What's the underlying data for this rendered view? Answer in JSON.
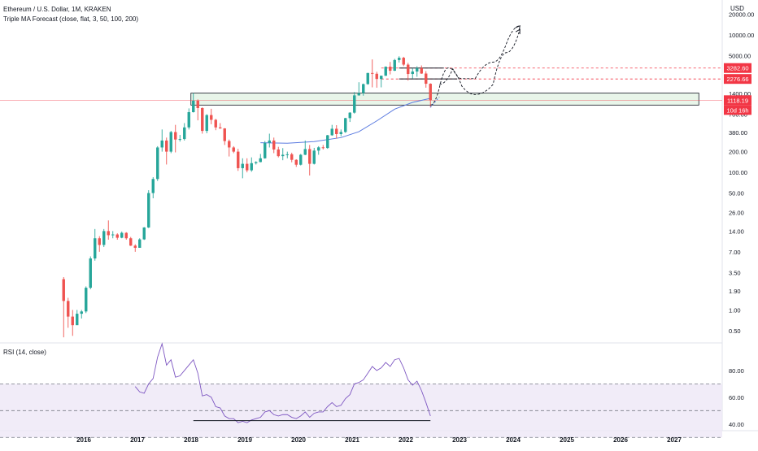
{
  "header": {
    "symbol_title": "Ethereum / U.S. Dollar, 1M, KRAKEN",
    "indicator_title": "Triple MA Forecast (close, flat, 3, 50, 100, 200)",
    "currency": "USD"
  },
  "rsi_panel": {
    "title": "RSI (14, close)",
    "ticks": [
      "80.00",
      "60.00",
      "40.00"
    ],
    "tick_values": [
      80,
      60,
      40
    ],
    "bands": [
      70,
      50,
      30
    ],
    "line_color": "#7e57c2",
    "support_line_value": 42.5
  },
  "colors": {
    "up": "#26a69a",
    "down": "#ef5350",
    "ma": "#5b7be0",
    "zone_fill": "#e8f5e9",
    "price_line": "#f23645",
    "rsi_bg": "#ede7f6"
  },
  "chart_data": {
    "type": "candlestick",
    "title": "Ethereum / U.S. Dollar, 1M, KRAKEN",
    "y_scale": "log",
    "ylim": [
      0.35,
      32000
    ],
    "y_ticks": [
      "20000.00",
      "10000.00",
      "5000.00",
      "1400.00",
      "700.00",
      "380.00",
      "200.00",
      "100.00",
      "50.00",
      "26.00",
      "14.00",
      "7.00",
      "3.50",
      "1.90",
      "1.00",
      "0.50"
    ],
    "y_tick_values": [
      20000,
      10000,
      5000,
      1400,
      700,
      380,
      200,
      100,
      50,
      26,
      14,
      7,
      3.5,
      1.9,
      1.0,
      0.5
    ],
    "x_ticks": [
      "2016",
      "2017",
      "2018",
      "2019",
      "2020",
      "2021",
      "2022",
      "2023",
      "2024",
      "2025",
      "2026",
      "2027"
    ],
    "x_tick_years": [
      2016,
      2017,
      2018,
      2019,
      2020,
      2021,
      2022,
      2023,
      2024,
      2025,
      2026,
      2027
    ],
    "price_labels": [
      {
        "text": "3282.60",
        "value": 3282.6
      },
      {
        "text": "2276.66",
        "value": 2276.66
      },
      {
        "text": "1118.19",
        "value": 1118.19
      },
      {
        "text": "10d 16h",
        "value": 1118.19
      }
    ],
    "current_price": 1118.19,
    "support_zone": {
      "low": 950,
      "high": 1420,
      "from": "2018-01",
      "to": "2027-06"
    },
    "candles": [
      {
        "t": "2015-08",
        "o": 2.8,
        "h": 3.0,
        "l": 0.4,
        "c": 1.35
      },
      {
        "t": "2015-09",
        "o": 1.35,
        "h": 1.5,
        "l": 0.55,
        "c": 0.8
      },
      {
        "t": "2015-10",
        "o": 0.8,
        "h": 1.0,
        "l": 0.42,
        "c": 0.6
      },
      {
        "t": "2015-11",
        "o": 0.6,
        "h": 1.0,
        "l": 0.7,
        "c": 0.88
      },
      {
        "t": "2015-12",
        "o": 0.88,
        "h": 1.0,
        "l": 0.75,
        "c": 0.95
      },
      {
        "t": "2016-01",
        "o": 0.95,
        "h": 2.2,
        "l": 0.9,
        "c": 2.1
      },
      {
        "t": "2016-02",
        "o": 2.1,
        "h": 6.0,
        "l": 2.0,
        "c": 5.6
      },
      {
        "t": "2016-03",
        "o": 5.6,
        "h": 15.0,
        "l": 5.2,
        "c": 11.0
      },
      {
        "t": "2016-04",
        "o": 11.0,
        "h": 11.8,
        "l": 7.0,
        "c": 8.8
      },
      {
        "t": "2016-05",
        "o": 8.8,
        "h": 15.0,
        "l": 8.2,
        "c": 14.0
      },
      {
        "t": "2016-06",
        "o": 14.0,
        "h": 20.0,
        "l": 10.5,
        "c": 12.2
      },
      {
        "t": "2016-07",
        "o": 12.2,
        "h": 14.0,
        "l": 11.0,
        "c": 12.5
      },
      {
        "t": "2016-08",
        "o": 12.5,
        "h": 13.0,
        "l": 10.5,
        "c": 11.2
      },
      {
        "t": "2016-09",
        "o": 11.2,
        "h": 13.8,
        "l": 11.0,
        "c": 13.2
      },
      {
        "t": "2016-10",
        "o": 13.2,
        "h": 13.5,
        "l": 10.5,
        "c": 11.0
      },
      {
        "t": "2016-11",
        "o": 11.0,
        "h": 11.5,
        "l": 8.5,
        "c": 8.6
      },
      {
        "t": "2016-12",
        "o": 8.6,
        "h": 9.0,
        "l": 7.0,
        "c": 8.0
      },
      {
        "t": "2017-01",
        "o": 8.0,
        "h": 11.0,
        "l": 8.0,
        "c": 10.6
      },
      {
        "t": "2017-02",
        "o": 10.6,
        "h": 16.0,
        "l": 10.4,
        "c": 15.8
      },
      {
        "t": "2017-03",
        "o": 15.8,
        "h": 55.0,
        "l": 15.5,
        "c": 50.0
      },
      {
        "t": "2017-04",
        "o": 50.0,
        "h": 85.0,
        "l": 42.0,
        "c": 80.0
      },
      {
        "t": "2017-05",
        "o": 80.0,
        "h": 240.0,
        "l": 75.0,
        "c": 230.0
      },
      {
        "t": "2017-06",
        "o": 230.0,
        "h": 420.0,
        "l": 200.0,
        "c": 290.0
      },
      {
        "t": "2017-07",
        "o": 290.0,
        "h": 320.0,
        "l": 130.0,
        "c": 200.0
      },
      {
        "t": "2017-08",
        "o": 200.0,
        "h": 400.0,
        "l": 190.0,
        "c": 385.0
      },
      {
        "t": "2017-09",
        "o": 385.0,
        "h": 490.0,
        "l": 195.0,
        "c": 300.0
      },
      {
        "t": "2017-10",
        "o": 300.0,
        "h": 350.0,
        "l": 280.0,
        "c": 305.0
      },
      {
        "t": "2017-11",
        "o": 305.0,
        "h": 520.0,
        "l": 290.0,
        "c": 450.0
      },
      {
        "t": "2017-12",
        "o": 450.0,
        "h": 850.0,
        "l": 420.0,
        "c": 750.0
      },
      {
        "t": "2018-01",
        "o": 750.0,
        "h": 1420.0,
        "l": 740.0,
        "c": 1100.0
      },
      {
        "t": "2018-02",
        "o": 1100.0,
        "h": 1150.0,
        "l": 570.0,
        "c": 860.0
      },
      {
        "t": "2018-03",
        "o": 860.0,
        "h": 880.0,
        "l": 365.0,
        "c": 400.0
      },
      {
        "t": "2018-04",
        "o": 400.0,
        "h": 700.0,
        "l": 370.0,
        "c": 680.0
      },
      {
        "t": "2018-05",
        "o": 680.0,
        "h": 840.0,
        "l": 500.0,
        "c": 580.0
      },
      {
        "t": "2018-06",
        "o": 580.0,
        "h": 600.0,
        "l": 410.0,
        "c": 450.0
      },
      {
        "t": "2018-07",
        "o": 450.0,
        "h": 520.0,
        "l": 430.0,
        "c": 435.0
      },
      {
        "t": "2018-08",
        "o": 435.0,
        "h": 440.0,
        "l": 250.0,
        "c": 285.0
      },
      {
        "t": "2018-09",
        "o": 285.0,
        "h": 300.0,
        "l": 170.0,
        "c": 230.0
      },
      {
        "t": "2018-10",
        "o": 230.0,
        "h": 240.0,
        "l": 190.0,
        "c": 200.0
      },
      {
        "t": "2018-11",
        "o": 200.0,
        "h": 220.0,
        "l": 105.0,
        "c": 115.0
      },
      {
        "t": "2018-12",
        "o": 115.0,
        "h": 160.0,
        "l": 82.0,
        "c": 133.0
      },
      {
        "t": "2019-01",
        "o": 133.0,
        "h": 160.0,
        "l": 100.0,
        "c": 107.0
      },
      {
        "t": "2019-02",
        "o": 107.0,
        "h": 165.0,
        "l": 102.0,
        "c": 136.0
      },
      {
        "t": "2019-03",
        "o": 136.0,
        "h": 145.0,
        "l": 130.0,
        "c": 141.0
      },
      {
        "t": "2019-04",
        "o": 141.0,
        "h": 185.0,
        "l": 140.0,
        "c": 160.0
      },
      {
        "t": "2019-05",
        "o": 160.0,
        "h": 285.0,
        "l": 158.0,
        "c": 268.0
      },
      {
        "t": "2019-06",
        "o": 268.0,
        "h": 365.0,
        "l": 230.0,
        "c": 290.0
      },
      {
        "t": "2019-07",
        "o": 290.0,
        "h": 320.0,
        "l": 190.0,
        "c": 215.0
      },
      {
        "t": "2019-08",
        "o": 215.0,
        "h": 235.0,
        "l": 165.0,
        "c": 172.0
      },
      {
        "t": "2019-09",
        "o": 172.0,
        "h": 225.0,
        "l": 150.0,
        "c": 180.0
      },
      {
        "t": "2019-10",
        "o": 180.0,
        "h": 200.0,
        "l": 160.0,
        "c": 183.0
      },
      {
        "t": "2019-11",
        "o": 183.0,
        "h": 193.0,
        "l": 140.0,
        "c": 152.0
      },
      {
        "t": "2019-12",
        "o": 152.0,
        "h": 155.0,
        "l": 120.0,
        "c": 129.0
      },
      {
        "t": "2020-01",
        "o": 129.0,
        "h": 185.0,
        "l": 126.0,
        "c": 180.0
      },
      {
        "t": "2020-02",
        "o": 180.0,
        "h": 290.0,
        "l": 178.0,
        "c": 218.0
      },
      {
        "t": "2020-03",
        "o": 218.0,
        "h": 250.0,
        "l": 90.0,
        "c": 133.0
      },
      {
        "t": "2020-04",
        "o": 133.0,
        "h": 227.0,
        "l": 130.0,
        "c": 207.0
      },
      {
        "t": "2020-05",
        "o": 207.0,
        "h": 240.0,
        "l": 180.0,
        "c": 231.0
      },
      {
        "t": "2020-06",
        "o": 231.0,
        "h": 250.0,
        "l": 215.0,
        "c": 226.0
      },
      {
        "t": "2020-07",
        "o": 226.0,
        "h": 350.0,
        "l": 220.0,
        "c": 346.0
      },
      {
        "t": "2020-08",
        "o": 346.0,
        "h": 490.0,
        "l": 340.0,
        "c": 430.0
      },
      {
        "t": "2020-09",
        "o": 430.0,
        "h": 485.0,
        "l": 310.0,
        "c": 360.0
      },
      {
        "t": "2020-10",
        "o": 360.0,
        "h": 420.0,
        "l": 335.0,
        "c": 386.0
      },
      {
        "t": "2020-11",
        "o": 386.0,
        "h": 620.0,
        "l": 375.0,
        "c": 614.0
      },
      {
        "t": "2020-12",
        "o": 614.0,
        "h": 750.0,
        "l": 540.0,
        "c": 737.0
      },
      {
        "t": "2021-01",
        "o": 737.0,
        "h": 1470.0,
        "l": 715.0,
        "c": 1314.0
      },
      {
        "t": "2021-02",
        "o": 1314.0,
        "h": 2040.0,
        "l": 1300.0,
        "c": 1418.0
      },
      {
        "t": "2021-03",
        "o": 1418.0,
        "h": 1950.0,
        "l": 1300.0,
        "c": 1917.0
      },
      {
        "t": "2021-04",
        "o": 1917.0,
        "h": 2800.0,
        "l": 1880.0,
        "c": 2780.0
      },
      {
        "t": "2021-05",
        "o": 2780.0,
        "h": 4380.0,
        "l": 1720.0,
        "c": 2710.0
      },
      {
        "t": "2021-06",
        "o": 2710.0,
        "h": 2900.0,
        "l": 1700.0,
        "c": 2275.0
      },
      {
        "t": "2021-07",
        "o": 2275.0,
        "h": 2550.0,
        "l": 1720.0,
        "c": 2535.0
      },
      {
        "t": "2021-08",
        "o": 2535.0,
        "h": 3470.0,
        "l": 2520.0,
        "c": 3430.0
      },
      {
        "t": "2021-09",
        "o": 3430.0,
        "h": 4030.0,
        "l": 2650.0,
        "c": 3000.0
      },
      {
        "t": "2021-10",
        "o": 3000.0,
        "h": 4460.0,
        "l": 2970.0,
        "c": 4290.0
      },
      {
        "t": "2021-11",
        "o": 4290.0,
        "h": 4870.0,
        "l": 3950.0,
        "c": 4630.0
      },
      {
        "t": "2021-12",
        "o": 4630.0,
        "h": 4780.0,
        "l": 3500.0,
        "c": 3680.0
      },
      {
        "t": "2022-01",
        "o": 3680.0,
        "h": 3900.0,
        "l": 2160.0,
        "c": 2690.0
      },
      {
        "t": "2022-02",
        "o": 2690.0,
        "h": 3280.0,
        "l": 2300.0,
        "c": 2920.0
      },
      {
        "t": "2022-03",
        "o": 2920.0,
        "h": 3480.0,
        "l": 2450.0,
        "c": 3280.0
      },
      {
        "t": "2022-04",
        "o": 3280.0,
        "h": 3580.0,
        "l": 2700.0,
        "c": 2730.0
      },
      {
        "t": "2022-05",
        "o": 2730.0,
        "h": 2960.0,
        "l": 1700.0,
        "c": 1940.0
      },
      {
        "t": "2022-06",
        "o": 1940.0,
        "h": 1970.0,
        "l": 880.0,
        "c": 1118.0
      }
    ],
    "ma_series": [
      {
        "t": "2019-04",
        "v": 270
      },
      {
        "t": "2019-10",
        "v": 265
      },
      {
        "t": "2020-04",
        "v": 280
      },
      {
        "t": "2020-10",
        "v": 320
      },
      {
        "t": "2021-02",
        "v": 390
      },
      {
        "t": "2021-06",
        "v": 560
      },
      {
        "t": "2021-10",
        "v": 830
      },
      {
        "t": "2022-02",
        "v": 1040
      },
      {
        "t": "2022-06",
        "v": 1190
      }
    ],
    "levels": [
      {
        "value": 3282.6,
        "from": "2021-07",
        "to": "2027-06"
      },
      {
        "value": 2276.66,
        "from": "2021-07",
        "to": "2027-06"
      },
      {
        "value": 1118.19,
        "from": "2015-06",
        "to": "2027-06"
      }
    ],
    "level_boxes": [
      {
        "value": 3282.6,
        "from": "2021-11",
        "to": "2022-09"
      },
      {
        "value": 2276.66,
        "from": "2021-11",
        "to": "2022-12"
      }
    ],
    "forecast_paths": [
      {
        "points": [
          {
            "t": "2022-06",
            "v": 950
          },
          {
            "t": "2022-08",
            "v": 1700
          },
          {
            "t": "2022-10",
            "v": 3300
          },
          {
            "t": "2023-01",
            "v": 1800
          },
          {
            "t": "2023-04",
            "v": 1350
          },
          {
            "t": "2023-08",
            "v": 1900
          },
          {
            "t": "2023-11",
            "v": 5500
          },
          {
            "t": "2024-02",
            "v": 12000
          }
        ]
      },
      {
        "points": [
          {
            "t": "2022-08",
            "v": 1900
          },
          {
            "t": "2022-11",
            "v": 3200
          },
          {
            "t": "2023-01",
            "v": 2300
          },
          {
            "t": "2023-04",
            "v": 2300
          },
          {
            "t": "2023-08",
            "v": 4000
          },
          {
            "t": "2023-11",
            "v": 7500
          },
          {
            "t": "2024-02",
            "v": 13500
          }
        ]
      }
    ],
    "forecast_arrow": {
      "from": {
        "t": "2022-06",
        "v": 880
      },
      "to": {
        "t": "2022-08",
        "v": 1250
      }
    },
    "rsi": {
      "ylim": [
        35,
        100
      ],
      "series": [
        {
          "t": "2016-12",
          "v": 68
        },
        {
          "t": "2017-01",
          "v": 64
        },
        {
          "t": "2017-02",
          "v": 63
        },
        {
          "t": "2017-03",
          "v": 70
        },
        {
          "t": "2017-04",
          "v": 74
        },
        {
          "t": "2017-05",
          "v": 90
        },
        {
          "t": "2017-06",
          "v": 100
        },
        {
          "t": "2017-07",
          "v": 84
        },
        {
          "t": "2017-08",
          "v": 88
        },
        {
          "t": "2017-09",
          "v": 75
        },
        {
          "t": "2017-10",
          "v": 76
        },
        {
          "t": "2017-11",
          "v": 80
        },
        {
          "t": "2017-12",
          "v": 84
        },
        {
          "t": "2018-01",
          "v": 88
        },
        {
          "t": "2018-02",
          "v": 78
        },
        {
          "t": "2018-03",
          "v": 61
        },
        {
          "t": "2018-04",
          "v": 62
        },
        {
          "t": "2018-05",
          "v": 60
        },
        {
          "t": "2018-06",
          "v": 53
        },
        {
          "t": "2018-07",
          "v": 52
        },
        {
          "t": "2018-08",
          "v": 46
        },
        {
          "t": "2018-09",
          "v": 44
        },
        {
          "t": "2018-10",
          "v": 44
        },
        {
          "t": "2018-11",
          "v": 41
        },
        {
          "t": "2018-12",
          "v": 42
        },
        {
          "t": "2019-01",
          "v": 41
        },
        {
          "t": "2019-02",
          "v": 43
        },
        {
          "t": "2019-03",
          "v": 44
        },
        {
          "t": "2019-04",
          "v": 45
        },
        {
          "t": "2019-05",
          "v": 49
        },
        {
          "t": "2019-06",
          "v": 50
        },
        {
          "t": "2019-07",
          "v": 47
        },
        {
          "t": "2019-08",
          "v": 46
        },
        {
          "t": "2019-09",
          "v": 47
        },
        {
          "t": "2019-10",
          "v": 47
        },
        {
          "t": "2019-11",
          "v": 45
        },
        {
          "t": "2019-12",
          "v": 44
        },
        {
          "t": "2020-01",
          "v": 46
        },
        {
          "t": "2020-02",
          "v": 49
        },
        {
          "t": "2020-03",
          "v": 45
        },
        {
          "t": "2020-04",
          "v": 48
        },
        {
          "t": "2020-05",
          "v": 49
        },
        {
          "t": "2020-06",
          "v": 49
        },
        {
          "t": "2020-07",
          "v": 53
        },
        {
          "t": "2020-08",
          "v": 56
        },
        {
          "t": "2020-09",
          "v": 53
        },
        {
          "t": "2020-10",
          "v": 54
        },
        {
          "t": "2020-11",
          "v": 59
        },
        {
          "t": "2020-12",
          "v": 62
        },
        {
          "t": "2021-01",
          "v": 70
        },
        {
          "t": "2021-02",
          "v": 71
        },
        {
          "t": "2021-03",
          "v": 73
        },
        {
          "t": "2021-04",
          "v": 78
        },
        {
          "t": "2021-05",
          "v": 83
        },
        {
          "t": "2021-06",
          "v": 80
        },
        {
          "t": "2021-07",
          "v": 82
        },
        {
          "t": "2021-08",
          "v": 86
        },
        {
          "t": "2021-09",
          "v": 83
        },
        {
          "t": "2021-10",
          "v": 88
        },
        {
          "t": "2021-11",
          "v": 89
        },
        {
          "t": "2021-12",
          "v": 82
        },
        {
          "t": "2022-01",
          "v": 73
        },
        {
          "t": "2022-02",
          "v": 69
        },
        {
          "t": "2022-03",
          "v": 72
        },
        {
          "t": "2022-04",
          "v": 65
        },
        {
          "t": "2022-05",
          "v": 56
        },
        {
          "t": "2022-06",
          "v": 46
        }
      ]
    }
  }
}
